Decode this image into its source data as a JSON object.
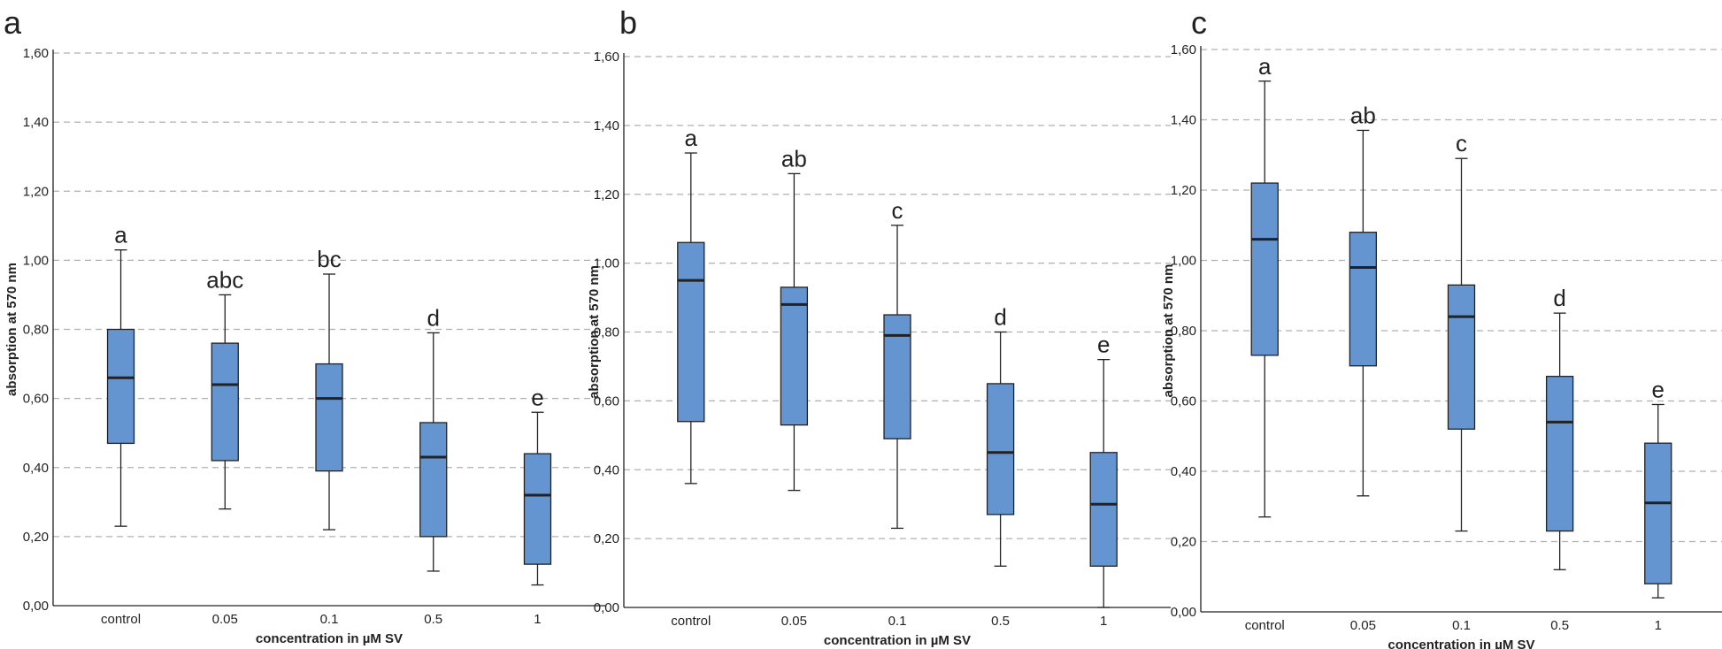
{
  "colors": {
    "box_fill": "#6495d0",
    "line": "#222222",
    "grid": "#b0b0b0"
  },
  "chart_data": [
    {
      "type": "box",
      "panel_label": "a",
      "title": "",
      "xlabel": "concentration in µM SV",
      "ylabel": "absorption at  570 nm",
      "ylim": [
        0,
        1.6
      ],
      "yticks": [
        "0,00",
        "0,20",
        "0,40",
        "0,60",
        "0,80",
        "1,00",
        "1,20",
        "1,40",
        "1,60"
      ],
      "grid": "horizontal-dashed",
      "categories": [
        "control",
        "0.05",
        "0.1",
        "0.5",
        "1"
      ],
      "boxes": [
        {
          "min": 0.23,
          "q1": 0.47,
          "median": 0.66,
          "q3": 0.8,
          "max": 1.03,
          "group": "a"
        },
        {
          "min": 0.28,
          "q1": 0.42,
          "median": 0.64,
          "q3": 0.76,
          "max": 0.9,
          "group": "abc"
        },
        {
          "min": 0.22,
          "q1": 0.39,
          "median": 0.6,
          "q3": 0.7,
          "max": 0.96,
          "group": "bc"
        },
        {
          "min": 0.1,
          "q1": 0.2,
          "median": 0.43,
          "q3": 0.53,
          "max": 0.79,
          "group": "d"
        },
        {
          "min": 0.06,
          "q1": 0.12,
          "median": 0.32,
          "q3": 0.44,
          "max": 0.56,
          "group": "e"
        }
      ]
    },
    {
      "type": "box",
      "panel_label": "b",
      "title": "",
      "xlabel": "concentration in µM SV",
      "ylabel": "absorption at  570 nm",
      "ylim": [
        0,
        1.6
      ],
      "yticks": [
        "0,00",
        "0,20",
        "0,40",
        "0,60",
        "0,80",
        "1,00",
        "1,20",
        "1,40",
        "1,60"
      ],
      "grid": "horizontal-dashed",
      "categories": [
        "control",
        "0.05",
        "0.1",
        "0.5",
        "1"
      ],
      "boxes": [
        {
          "min": 0.36,
          "q1": 0.54,
          "median": 0.95,
          "q3": 1.06,
          "max": 1.32,
          "group": "a"
        },
        {
          "min": 0.34,
          "q1": 0.53,
          "median": 0.88,
          "q3": 0.93,
          "max": 1.26,
          "group": "ab"
        },
        {
          "min": 0.23,
          "q1": 0.49,
          "median": 0.79,
          "q3": 0.85,
          "max": 1.11,
          "group": "c"
        },
        {
          "min": 0.12,
          "q1": 0.27,
          "median": 0.45,
          "q3": 0.65,
          "max": 0.8,
          "group": "d"
        },
        {
          "min": 0.0,
          "q1": 0.12,
          "median": 0.3,
          "q3": 0.45,
          "max": 0.72,
          "group": "e"
        }
      ]
    },
    {
      "type": "box",
      "panel_label": "c",
      "title": "",
      "xlabel": "concentration in µM SV",
      "ylabel": "absorption at  570 nm",
      "ylim": [
        0,
        1.6
      ],
      "yticks": [
        "0,00",
        "0,20",
        "0,40",
        "0,60",
        "0,80",
        "1,00",
        "1,20",
        "1,40",
        "1,60"
      ],
      "grid": "horizontal-dashed",
      "categories": [
        "control",
        "0.05",
        "0.1",
        "0.5",
        "1"
      ],
      "boxes": [
        {
          "min": 0.27,
          "q1": 0.73,
          "median": 1.06,
          "q3": 1.22,
          "max": 1.51,
          "group": "a"
        },
        {
          "min": 0.33,
          "q1": 0.7,
          "median": 0.98,
          "q3": 1.08,
          "max": 1.37,
          "group": "ab"
        },
        {
          "min": 0.23,
          "q1": 0.52,
          "median": 0.84,
          "q3": 0.93,
          "max": 1.29,
          "group": "c"
        },
        {
          "min": 0.12,
          "q1": 0.23,
          "median": 0.54,
          "q3": 0.67,
          "max": 0.85,
          "group": "d"
        },
        {
          "min": 0.04,
          "q1": 0.08,
          "median": 0.31,
          "q3": 0.48,
          "max": 0.59,
          "group": "e"
        }
      ]
    }
  ]
}
